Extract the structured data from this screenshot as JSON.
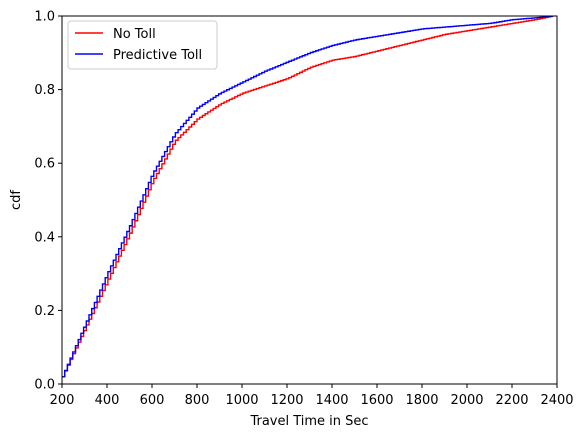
{
  "chart_data": {
    "type": "line",
    "title": "",
    "xlabel": "Travel Time in Sec",
    "ylabel": "cdf",
    "xlim": [
      200,
      2400
    ],
    "ylim": [
      0.0,
      1.0
    ],
    "x_ticks": [
      200,
      400,
      600,
      800,
      1000,
      1200,
      1400,
      1600,
      1800,
      2000,
      2200,
      2400
    ],
    "y_ticks": [
      "0.0",
      "0.2",
      "0.4",
      "0.6",
      "0.8",
      "1.0"
    ],
    "grid": false,
    "legend_position": "top-left",
    "step": true,
    "x": [
      200,
      300,
      400,
      500,
      600,
      700,
      800,
      900,
      1000,
      1100,
      1200,
      1300,
      1400,
      1500,
      1600,
      1700,
      1800,
      1900,
      2000,
      2100,
      2200,
      2300,
      2380
    ],
    "series": [
      {
        "name": "No Toll",
        "color": "#ff0000",
        "values": [
          0.02,
          0.15,
          0.28,
          0.41,
          0.55,
          0.66,
          0.72,
          0.76,
          0.79,
          0.81,
          0.83,
          0.86,
          0.88,
          0.89,
          0.905,
          0.92,
          0.935,
          0.95,
          0.96,
          0.97,
          0.98,
          0.99,
          1.0
        ]
      },
      {
        "name": "Predictive Toll",
        "color": "#0000ff",
        "values": [
          0.02,
          0.16,
          0.3,
          0.43,
          0.57,
          0.68,
          0.75,
          0.79,
          0.82,
          0.85,
          0.875,
          0.9,
          0.92,
          0.935,
          0.945,
          0.955,
          0.965,
          0.97,
          0.975,
          0.98,
          0.99,
          0.995,
          1.0
        ]
      }
    ]
  }
}
